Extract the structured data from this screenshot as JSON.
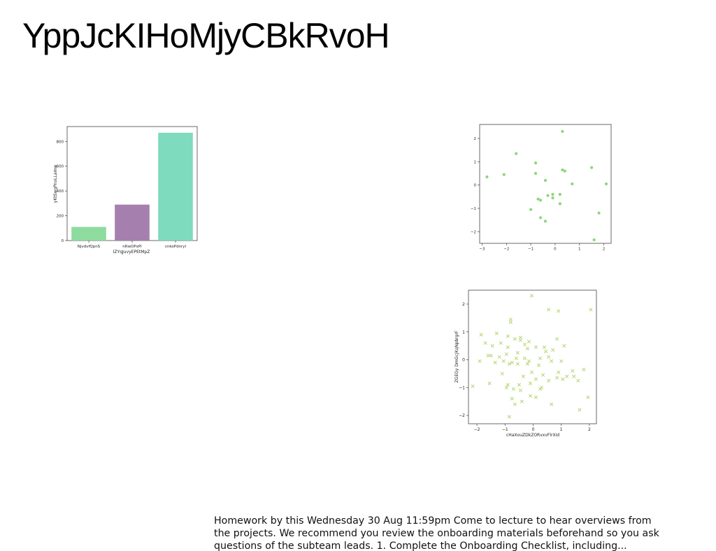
{
  "page": {
    "title": "YppJcKIHoMjyCBkRvoH",
    "body_text": "Homework by this Wednesday 30 Aug 11:59pm Come to lecture to hear overviews from the projects. We recommend you review the onboarding materials beforehand so you ask questions of the subteam leads. 1. Complete the Onboarding Checklist, including..."
  },
  "chart_data": [
    {
      "type": "bar",
      "categories": [
        "NjvdvfQpnS",
        "nRwOPxPi",
        "cnkoPdnryl"
      ],
      "values": [
        110,
        290,
        870
      ],
      "colors": [
        "#8edb9f",
        "#a57fae",
        "#7edbbd"
      ],
      "xlabel": "IZYqJuvyEPEtMpZ",
      "ylabel": "yKtSwgPnoLLamw",
      "ylim": [
        0,
        920
      ],
      "yticks": [
        0,
        200,
        400,
        600,
        800
      ],
      "grid": false
    },
    {
      "type": "scatter",
      "marker": "circle",
      "color": "#7dd46a",
      "xlim": [
        -3.1,
        2.3
      ],
      "ylim": [
        -2.5,
        2.6
      ],
      "xticks": [
        -3,
        -2,
        -1,
        0,
        1,
        2
      ],
      "yticks": [
        -2,
        -1,
        0,
        1,
        2
      ],
      "xlabel": "",
      "ylabel": "",
      "grid": false,
      "x": [
        0.3,
        -1.6,
        -0.8,
        1.5,
        -2.8,
        -2.1,
        0.3,
        0.4,
        -0.8,
        -0.4,
        0.7,
        2.1,
        -0.1,
        -0.7,
        -0.6,
        0.2,
        -0.3,
        -0.1,
        0.2,
        -1.0,
        1.8,
        -0.6,
        -0.4,
        1.6
      ],
      "y": [
        2.3,
        1.35,
        0.95,
        0.75,
        0.35,
        0.45,
        0.65,
        0.6,
        0.5,
        0.2,
        0.05,
        0.05,
        -0.4,
        -0.6,
        -0.65,
        -0.4,
        -0.45,
        -0.55,
        -0.8,
        -1.05,
        -1.2,
        -1.4,
        -1.55,
        -2.35
      ]
    },
    {
      "type": "scatter",
      "marker": "x",
      "color": "#a8cf5a",
      "xlim": [
        -2.3,
        2.25
      ],
      "ylim": [
        -2.3,
        2.5
      ],
      "xticks": [
        -2,
        -1,
        0,
        1,
        2
      ],
      "yticks": [
        -2,
        -1,
        0,
        1,
        2
      ],
      "xlabel": "cHaXouZDkZORvxvFlrXid",
      "ylabel": "ZGEGy DmGcJKqNpbrgrF",
      "grid": false,
      "x": [
        -0.05,
        -0.8,
        0.55,
        0.9,
        2.05,
        -1.7,
        -0.8,
        -0.9,
        -0.45,
        -0.15,
        -1.85,
        -1.6,
        -1.3,
        0.85,
        -0.65,
        -0.45,
        -0.3,
        -0.2,
        -0.9,
        -1.45,
        0.4,
        -1.15,
        0.1,
        0.45,
        0.7,
        -0.55,
        -0.95,
        -1.5,
        -1.2,
        -0.3,
        -0.6,
        0.25,
        0.55,
        -0.15,
        -1.05,
        -0.75,
        -1.9,
        -1.35,
        -0.85,
        -0.55,
        -0.2,
        0.2,
        0.65,
        1.0,
        1.4,
        1.8,
        -0.05,
        0.35,
        0.9,
        1.2,
        -1.1,
        -0.35,
        0.1,
        0.55,
        1.05,
        1.6,
        -0.9,
        -0.5,
        -0.1,
        0.3,
        0.85,
        -2.15,
        -1.55,
        -0.7,
        -0.45,
        -0.1,
        0.25,
        1.45,
        -0.75,
        -0.65,
        -0.95,
        -0.4,
        0.65,
        1.95,
        -0.85,
        0.1,
        1.65,
        1.1
      ],
      "y": [
        2.3,
        1.45,
        1.8,
        1.75,
        1.8,
        0.6,
        1.35,
        0.85,
        0.8,
        0.65,
        0.9,
        0.15,
        0.95,
        0.75,
        0.75,
        0.7,
        0.55,
        0.4,
        0.45,
        0.5,
        0.45,
        0.6,
        0.45,
        0.3,
        0.35,
        0.25,
        0.2,
        0.15,
        0.1,
        0.05,
        0.05,
        0.05,
        0.1,
        -0.05,
        -0.05,
        -0.1,
        -0.05,
        -0.1,
        -0.15,
        -0.15,
        -0.15,
        -0.2,
        -0.05,
        -0.05,
        -0.4,
        -0.35,
        -0.45,
        -0.55,
        -0.45,
        -0.6,
        -0.5,
        -0.6,
        -0.7,
        -0.75,
        -0.7,
        -0.75,
        -0.9,
        -0.9,
        -0.85,
        -1.0,
        -0.65,
        -0.95,
        -0.85,
        -1.05,
        -1.1,
        -1.3,
        -1.05,
        -0.6,
        -1.4,
        -1.6,
        -1.0,
        -1.5,
        -1.6,
        -1.35,
        -2.05,
        -1.35,
        -1.8,
        0.5
      ]
    }
  ]
}
